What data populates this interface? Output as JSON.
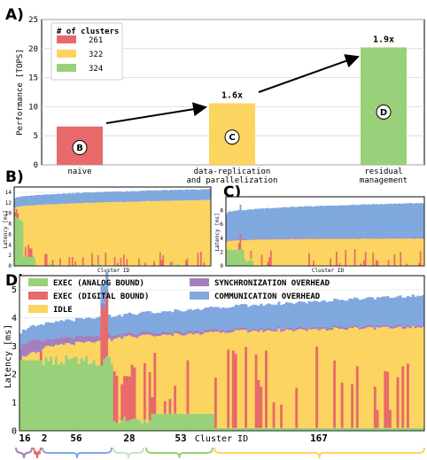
{
  "chart_data": [
    {
      "panel": "A)",
      "type": "bar",
      "ylabel": "Performance [TOPS]",
      "ylim": [
        0,
        25
      ],
      "yticks": [
        0,
        5,
        10,
        15,
        20,
        25
      ],
      "grid": true,
      "legend_title": "# of clusters",
      "legend_position": "top-left",
      "categories": [
        "naive",
        "data-replication\nand parallelization",
        "residual\nmanagement"
      ],
      "values": [
        6.6,
        10.6,
        20.2
      ],
      "legend": [
        "261",
        "322",
        "324"
      ],
      "colors": [
        "#e86a6a",
        "#fcd460",
        "#98d17a"
      ],
      "bar_markers": [
        "B",
        "C",
        "D"
      ],
      "speedup_labels": [
        "",
        "1.6x",
        "1.9x"
      ]
    },
    {
      "panel": "B)",
      "type": "bar",
      "stacked": true,
      "ylabel": "Latency [ms]",
      "xlabel": "Cluster ID",
      "ylim": [
        0,
        15
      ],
      "yticks": [
        0,
        2,
        4,
        6,
        8,
        10,
        12,
        14
      ],
      "bars": 261,
      "sorted_totals_range": [
        12.9,
        14.6
      ]
    },
    {
      "panel": "C)",
      "type": "bar",
      "stacked": true,
      "ylabel": "Latency [ms]",
      "xlabel": "Cluster ID",
      "ylim": [
        0,
        10
      ],
      "yticks": [
        0,
        2,
        4,
        6,
        8
      ],
      "bars": 322,
      "sorted_totals_range": [
        7.6,
        9.1
      ]
    },
    {
      "panel": "D)",
      "type": "bar",
      "stacked": true,
      "ylabel": "Latency [ms]",
      "xlabel": "Cluster ID",
      "ylim": [
        0,
        5.5
      ],
      "yticks": [
        0,
        1,
        2,
        3,
        4,
        5
      ],
      "bars": 324,
      "series": [
        {
          "name": "EXEC (ANALOG BOUND)",
          "color": "#98d17a"
        },
        {
          "name": "EXEC (DIGITAL BOUND)",
          "color": "#e86a6a"
        },
        {
          "name": "IDLE",
          "color": "#fcd460"
        },
        {
          "name": "SYNCHRONIZATION OVERHEAD",
          "color": "#a57fbe"
        },
        {
          "name": "COMMUNICATION OVERHEAD",
          "color": "#7fa8de"
        }
      ],
      "sorted_totals_range": [
        3.5,
        4.8
      ],
      "groups": [
        {
          "count": "16",
          "color": "#a57fbe"
        },
        {
          "count": "2",
          "color": "#e86a6a"
        },
        {
          "count": "56",
          "color": "#7fa8de"
        },
        {
          "count": "28",
          "color": "#c9e3c5"
        },
        {
          "count": "53",
          "color": "#98d17a"
        },
        {
          "count": "167",
          "color": "#fcd460"
        }
      ]
    }
  ]
}
